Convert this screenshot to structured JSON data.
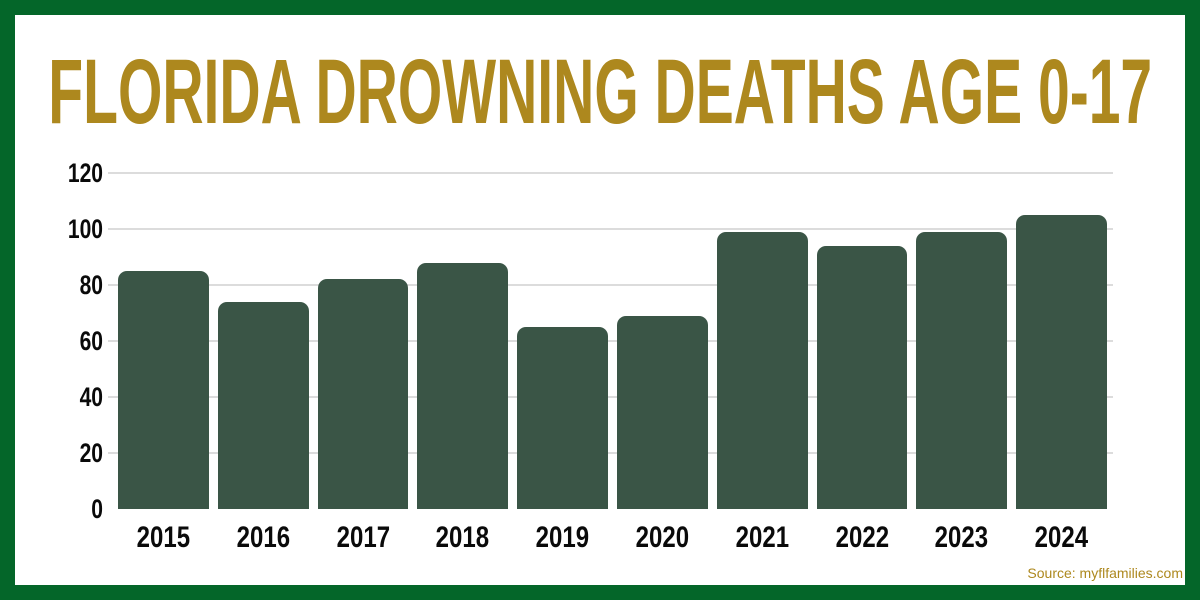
{
  "title": "FLORIDA DROWNING DEATHS AGE 0-17",
  "source": "Source: myflfamilies.com",
  "colors": {
    "frame_border": "#046629",
    "bar": "#3A5546",
    "title_gold": "#AD881E",
    "gridline": "#DCDCDC",
    "axis_text": "#0A0A0A",
    "background": "#FFFFFF"
  },
  "chart_data": {
    "type": "bar",
    "title": "FLORIDA DROWNING DEATHS AGE 0-17",
    "categories": [
      "2015",
      "2016",
      "2017",
      "2018",
      "2019",
      "2020",
      "2021",
      "2022",
      "2023",
      "2024"
    ],
    "values": [
      85,
      74,
      82,
      88,
      65,
      69,
      99,
      94,
      99,
      105
    ],
    "xlabel": "",
    "ylabel": "",
    "ylim": [
      0,
      120
    ],
    "yticks": [
      0,
      20,
      40,
      60,
      80,
      100,
      120
    ],
    "grid": true,
    "legend": false,
    "annotation": "Source: myflfamilies.com"
  }
}
